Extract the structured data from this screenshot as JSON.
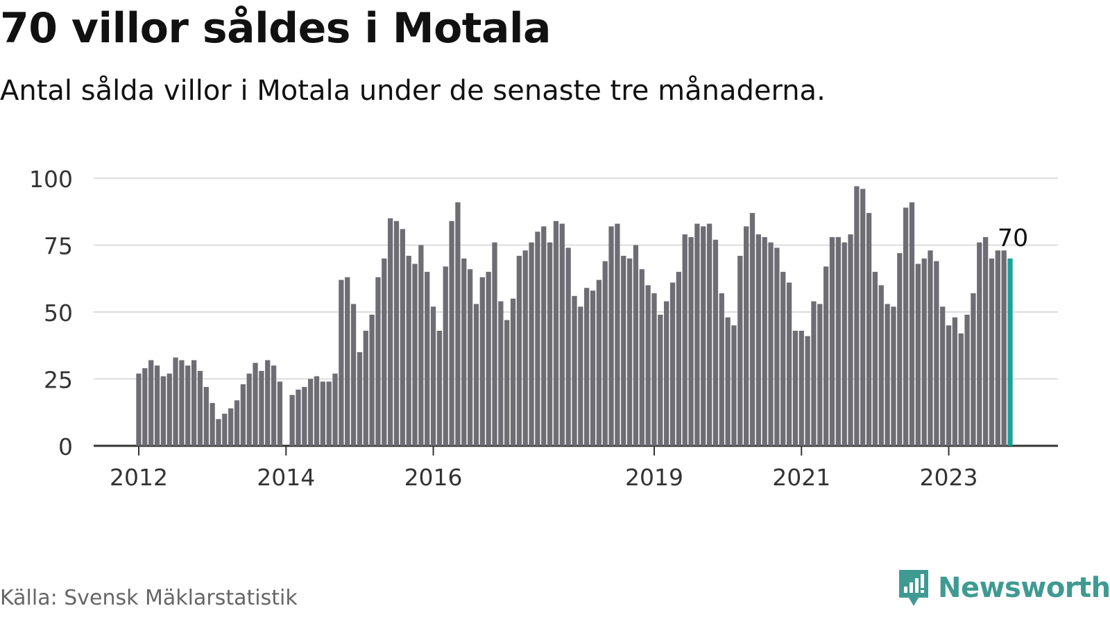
{
  "title": "70 villor såldes i Motala",
  "subtitle": "Antal sålda villor i Motala under de senaste tre månaderna.",
  "source": "Källa: Svensk Mäklarstatistik",
  "brand": "Newsworthy",
  "colors": {
    "bar": "#6e6d74",
    "highlight": "#17a398",
    "grid": "#dddddd",
    "axis": "#333333",
    "brand": "#3f9a92"
  },
  "chart_data": {
    "type": "bar",
    "ylim": [
      0,
      100
    ],
    "yticks": [
      0,
      25,
      50,
      75,
      100
    ],
    "xtick_labels": [
      {
        "label": "2012",
        "index": 0
      },
      {
        "label": "2014",
        "index": 24
      },
      {
        "label": "2016",
        "index": 48
      },
      {
        "label": "2019",
        "index": 84
      },
      {
        "label": "2021",
        "index": 108
      },
      {
        "label": "2023",
        "index": 132
      }
    ],
    "values": [
      27,
      29,
      32,
      30,
      26,
      27,
      33,
      32,
      30,
      32,
      28,
      22,
      16,
      10,
      12,
      14,
      17,
      23,
      27,
      31,
      28,
      32,
      30,
      24,
      null,
      19,
      21,
      22,
      25,
      26,
      24,
      24,
      27,
      62,
      63,
      53,
      35,
      43,
      49,
      63,
      70,
      85,
      84,
      81,
      71,
      68,
      75,
      65,
      52,
      43,
      67,
      84,
      91,
      70,
      66,
      53,
      63,
      65,
      76,
      54,
      47,
      55,
      71,
      73,
      76,
      80,
      82,
      76,
      84,
      83,
      74,
      56,
      52,
      59,
      58,
      62,
      69,
      82,
      83,
      71,
      70,
      75,
      66,
      60,
      57,
      49,
      54,
      61,
      65,
      79,
      78,
      83,
      82,
      83,
      77,
      57,
      48,
      45,
      71,
      82,
      87,
      79,
      78,
      76,
      74,
      65,
      61,
      43,
      43,
      41,
      54,
      53,
      67,
      78,
      78,
      76,
      79,
      97,
      96,
      87,
      65,
      60,
      53,
      52,
      72,
      89,
      91,
      68,
      70,
      73,
      69,
      52,
      45,
      48,
      42,
      49,
      57,
      76,
      78,
      70,
      73,
      73,
      70
    ],
    "highlight_last": true,
    "last_value_label": "70"
  }
}
